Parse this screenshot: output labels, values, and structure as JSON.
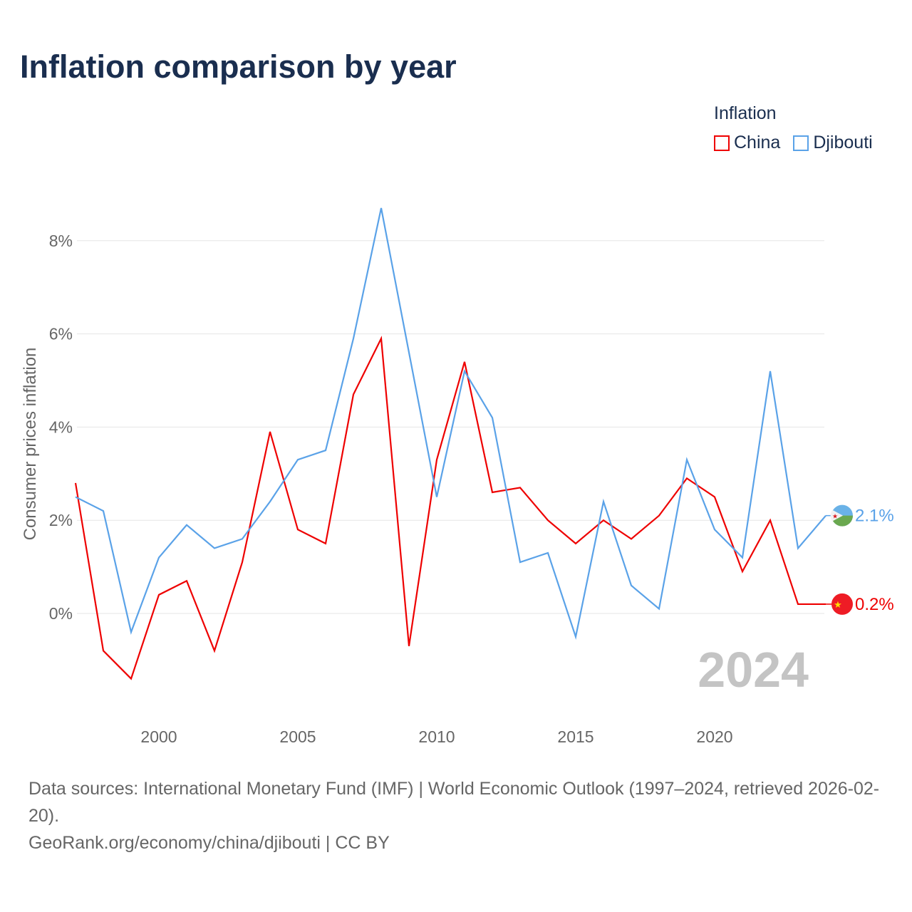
{
  "title": "Inflation comparison by year",
  "legend": {
    "title": "Inflation",
    "items": [
      {
        "name": "China",
        "color": "#ee0000"
      },
      {
        "name": "Djibouti",
        "color": "#5aa2e8"
      }
    ]
  },
  "year_label": "2024",
  "chart_data": {
    "type": "line",
    "title": "Inflation comparison by year",
    "xlabel": "",
    "ylabel": "Consumer prices inflation",
    "x": [
      1997,
      1998,
      1999,
      2000,
      2001,
      2002,
      2003,
      2004,
      2005,
      2006,
      2007,
      2008,
      2009,
      2010,
      2011,
      2012,
      2013,
      2014,
      2015,
      2016,
      2017,
      2018,
      2019,
      2020,
      2021,
      2022,
      2023,
      2024
    ],
    "xticks": [
      2000,
      2005,
      2010,
      2015,
      2020
    ],
    "yticks": [
      0,
      2,
      4,
      6,
      8
    ],
    "ytick_labels": [
      "0%",
      "2%",
      "4%",
      "6%",
      "8%"
    ],
    "ylim": [
      -2,
      9.4
    ],
    "xlim": [
      1997,
      2024
    ],
    "grid": true,
    "legend_position": "top-right",
    "series": [
      {
        "name": "China",
        "color": "#ee0000",
        "end_label": "0.2%",
        "values": [
          2.8,
          -0.8,
          -1.4,
          0.4,
          0.7,
          -0.8,
          1.1,
          3.9,
          1.8,
          1.5,
          4.7,
          5.9,
          -0.7,
          3.3,
          5.4,
          2.6,
          2.7,
          2.0,
          1.5,
          2.0,
          1.6,
          2.1,
          2.9,
          2.5,
          0.9,
          2.0,
          0.2,
          0.2
        ]
      },
      {
        "name": "Djibouti",
        "color": "#5aa2e8",
        "end_label": "2.1%",
        "values": [
          2.5,
          2.2,
          -0.4,
          1.2,
          1.9,
          1.4,
          1.6,
          2.4,
          3.3,
          3.5,
          5.9,
          8.7,
          5.6,
          2.5,
          5.2,
          4.2,
          1.1,
          1.3,
          -0.5,
          2.4,
          0.6,
          0.1,
          3.3,
          1.8,
          1.2,
          5.2,
          1.4,
          2.1
        ]
      }
    ]
  },
  "footer": {
    "source": "Data sources: International Monetary Fund (IMF) | World Economic Outlook (1997–2024, retrieved 2026-02-20).",
    "credit": "GeoRank.org/economy/china/djibouti | CC BY"
  }
}
